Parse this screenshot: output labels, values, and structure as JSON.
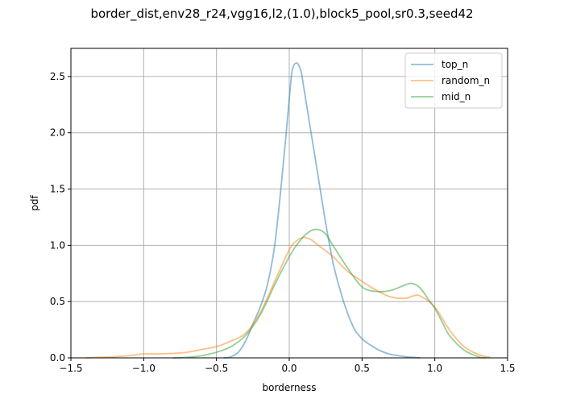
{
  "chart_data": {
    "type": "line",
    "title": "border_dist,env28_r24,vgg16,l2,(1.0),block5_pool,sr0.3,seed42",
    "xlabel": "borderness",
    "ylabel": "pdf",
    "xlim": [
      -1.5,
      1.5
    ],
    "ylim": [
      0.0,
      2.75
    ],
    "xticks": [
      -1.5,
      -1.0,
      -0.5,
      0.0,
      0.5,
      1.0,
      1.5
    ],
    "xtick_labels": [
      "−1.5",
      "−1.0",
      "−0.5",
      "0.0",
      "0.5",
      "1.0",
      "1.5"
    ],
    "yticks": [
      0.0,
      0.5,
      1.0,
      1.5,
      2.0,
      2.5
    ],
    "ytick_labels": [
      "0.0",
      "0.5",
      "1.0",
      "1.5",
      "2.0",
      "2.5"
    ],
    "grid": true,
    "legend_position": "top-right",
    "series": [
      {
        "name": "top_n",
        "color": "#1f77b4",
        "x": [
          -0.45,
          -0.4,
          -0.35,
          -0.3,
          -0.25,
          -0.2,
          -0.15,
          -0.1,
          -0.05,
          0.0,
          0.02,
          0.05,
          0.08,
          0.1,
          0.15,
          0.2,
          0.25,
          0.3,
          0.35,
          0.4,
          0.45,
          0.5,
          0.55,
          0.6,
          0.65,
          0.7,
          0.75,
          0.8,
          0.85,
          0.9
        ],
        "y": [
          0.0,
          0.01,
          0.05,
          0.15,
          0.3,
          0.45,
          0.65,
          1.0,
          1.6,
          2.3,
          2.55,
          2.62,
          2.55,
          2.4,
          2.0,
          1.6,
          1.2,
          0.85,
          0.6,
          0.4,
          0.25,
          0.17,
          0.12,
          0.08,
          0.05,
          0.03,
          0.02,
          0.01,
          0.005,
          0.0
        ]
      },
      {
        "name": "random_n",
        "color": "#ff7f0e",
        "x": [
          -1.4,
          -1.3,
          -1.2,
          -1.1,
          -1.0,
          -0.9,
          -0.8,
          -0.7,
          -0.6,
          -0.5,
          -0.4,
          -0.3,
          -0.2,
          -0.1,
          0.0,
          0.05,
          0.1,
          0.15,
          0.2,
          0.3,
          0.4,
          0.5,
          0.6,
          0.7,
          0.8,
          0.85,
          0.9,
          1.0,
          1.1,
          1.2,
          1.3,
          1.38
        ],
        "y": [
          0.0,
          0.005,
          0.01,
          0.02,
          0.035,
          0.035,
          0.04,
          0.05,
          0.075,
          0.1,
          0.15,
          0.22,
          0.4,
          0.68,
          0.96,
          1.04,
          1.07,
          1.05,
          1.0,
          0.9,
          0.77,
          0.68,
          0.6,
          0.54,
          0.53,
          0.55,
          0.55,
          0.45,
          0.25,
          0.1,
          0.03,
          0.005
        ]
      },
      {
        "name": "mid_n",
        "color": "#2ca02c",
        "x": [
          -0.8,
          -0.7,
          -0.6,
          -0.5,
          -0.4,
          -0.3,
          -0.2,
          -0.1,
          0.0,
          0.05,
          0.1,
          0.15,
          0.2,
          0.25,
          0.3,
          0.4,
          0.5,
          0.6,
          0.7,
          0.8,
          0.85,
          0.9,
          0.95,
          1.0,
          1.05,
          1.1,
          1.2,
          1.3,
          1.35
        ],
        "y": [
          0.0,
          0.005,
          0.02,
          0.05,
          0.1,
          0.2,
          0.38,
          0.65,
          0.9,
          1.0,
          1.08,
          1.13,
          1.14,
          1.1,
          1.0,
          0.8,
          0.63,
          0.59,
          0.6,
          0.65,
          0.66,
          0.62,
          0.53,
          0.44,
          0.32,
          0.2,
          0.07,
          0.01,
          0.0
        ]
      }
    ]
  }
}
